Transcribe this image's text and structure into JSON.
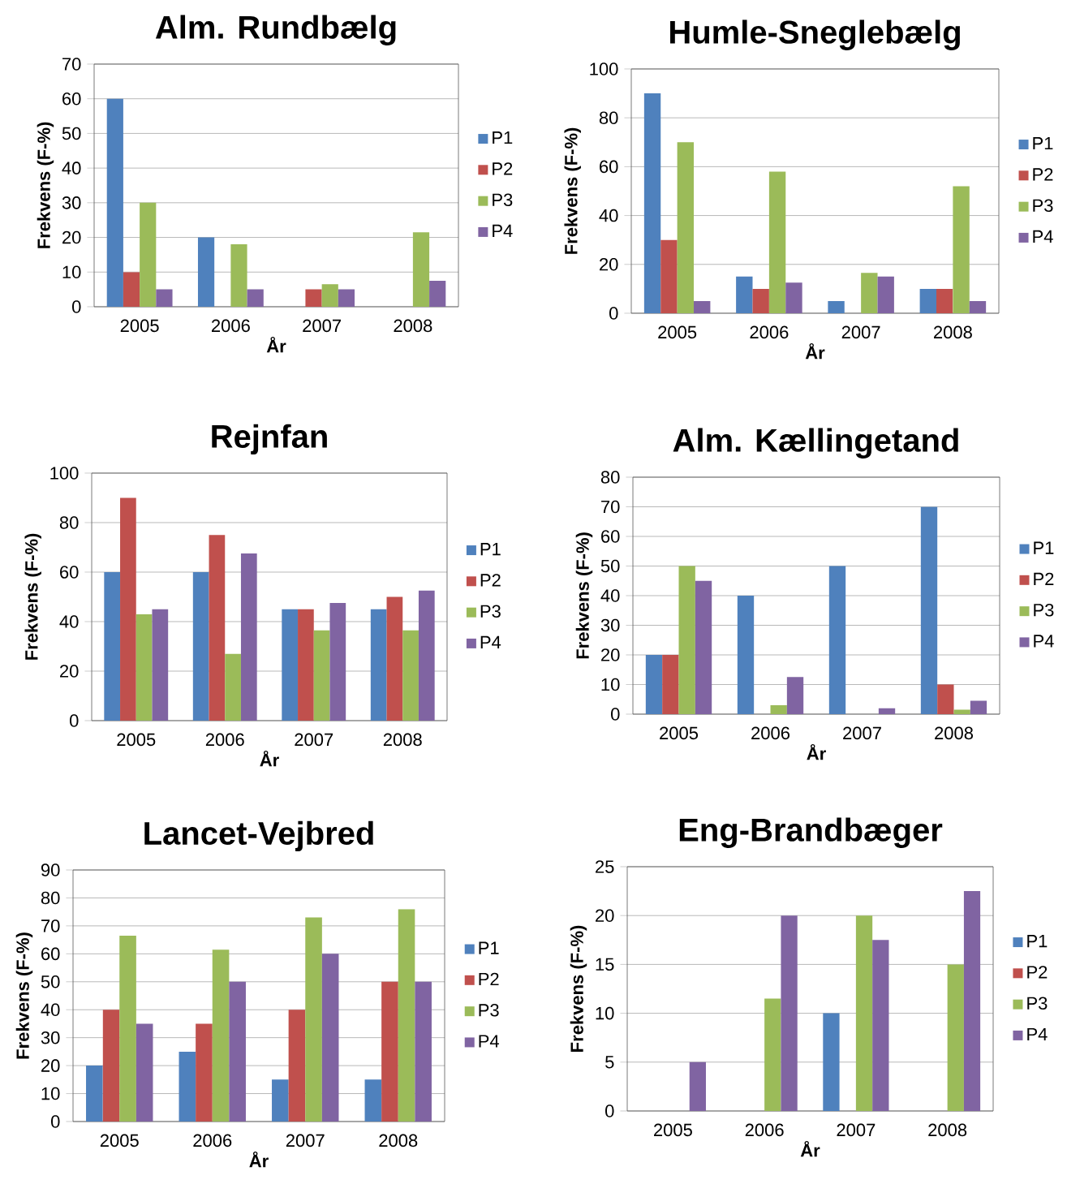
{
  "chart_data": [
    {
      "type": "bar",
      "title": "Alm. Rundbælg",
      "xlabel": "År",
      "ylabel": "Frekvens (F-%)",
      "categories": [
        "2005",
        "2006",
        "2007",
        "2008"
      ],
      "ylim": [
        0,
        70
      ],
      "yticks": [
        0,
        10,
        20,
        30,
        40,
        50,
        60,
        70
      ],
      "grid": "y",
      "legend": "right",
      "series": [
        {
          "name": "P1",
          "color": "#4f81bd",
          "values": [
            60,
            20,
            0,
            0
          ]
        },
        {
          "name": "P2",
          "color": "#c0504d",
          "values": [
            10,
            0,
            5,
            0
          ]
        },
        {
          "name": "P3",
          "color": "#9bbb59",
          "values": [
            30,
            18,
            6.5,
            21.5
          ]
        },
        {
          "name": "P4",
          "color": "#8064a2",
          "values": [
            5,
            5,
            5,
            7.5
          ]
        }
      ]
    },
    {
      "type": "bar",
      "title": "Humle-Sneglebælg",
      "xlabel": "År",
      "ylabel": "Frekvens (F-%)",
      "categories": [
        "2005",
        "2006",
        "2007",
        "2008"
      ],
      "ylim": [
        0,
        100
      ],
      "yticks": [
        0,
        20,
        40,
        60,
        80,
        100
      ],
      "grid": "y",
      "legend": "right",
      "series": [
        {
          "name": "P1",
          "color": "#4f81bd",
          "values": [
            90,
            15,
            5,
            10
          ]
        },
        {
          "name": "P2",
          "color": "#c0504d",
          "values": [
            30,
            10,
            0,
            10
          ]
        },
        {
          "name": "P3",
          "color": "#9bbb59",
          "values": [
            70,
            58,
            16.5,
            52
          ]
        },
        {
          "name": "P4",
          "color": "#8064a2",
          "values": [
            5,
            12.5,
            15,
            5
          ]
        }
      ]
    },
    {
      "type": "bar",
      "title": "Rejnfan",
      "xlabel": "År",
      "ylabel": "Frekvens (F-%)",
      "categories": [
        "2005",
        "2006",
        "2007",
        "2008"
      ],
      "ylim": [
        0,
        100
      ],
      "yticks": [
        0,
        20,
        40,
        60,
        80,
        100
      ],
      "grid": "y",
      "legend": "right",
      "series": [
        {
          "name": "P1",
          "color": "#4f81bd",
          "values": [
            60,
            60,
            45,
            45
          ]
        },
        {
          "name": "P2",
          "color": "#c0504d",
          "values": [
            90,
            75,
            45,
            50
          ]
        },
        {
          "name": "P3",
          "color": "#9bbb59",
          "values": [
            43,
            27,
            36.5,
            36.5
          ]
        },
        {
          "name": "P4",
          "color": "#8064a2",
          "values": [
            45,
            67.5,
            47.5,
            52.5
          ]
        }
      ]
    },
    {
      "type": "bar",
      "title": "Alm. Kællingetand",
      "xlabel": "År",
      "ylabel": "Frekvens (F-%)",
      "categories": [
        "2005",
        "2006",
        "2007",
        "2008"
      ],
      "ylim": [
        0,
        80
      ],
      "yticks": [
        0,
        10,
        20,
        30,
        40,
        50,
        60,
        70,
        80
      ],
      "grid": "y",
      "legend": "right",
      "series": [
        {
          "name": "P1",
          "color": "#4f81bd",
          "values": [
            20,
            40,
            50,
            70
          ]
        },
        {
          "name": "P2",
          "color": "#c0504d",
          "values": [
            20,
            0,
            0,
            10
          ]
        },
        {
          "name": "P3",
          "color": "#9bbb59",
          "values": [
            50,
            3,
            0,
            1.5
          ]
        },
        {
          "name": "P4",
          "color": "#8064a2",
          "values": [
            45,
            12.5,
            2,
            4.5
          ]
        }
      ]
    },
    {
      "type": "bar",
      "title": "Lancet-Vejbred",
      "xlabel": "År",
      "ylabel": "Frekvens (F-%)",
      "categories": [
        "2005",
        "2006",
        "2007",
        "2008"
      ],
      "ylim": [
        0,
        90
      ],
      "yticks": [
        0,
        10,
        20,
        30,
        40,
        50,
        60,
        70,
        80,
        90
      ],
      "grid": "y",
      "legend": "right",
      "series": [
        {
          "name": "P1",
          "color": "#4f81bd",
          "values": [
            20,
            25,
            15,
            15
          ]
        },
        {
          "name": "P2",
          "color": "#c0504d",
          "values": [
            40,
            35,
            40,
            50
          ]
        },
        {
          "name": "P3",
          "color": "#9bbb59",
          "values": [
            66.5,
            61.5,
            73,
            76
          ]
        },
        {
          "name": "P4",
          "color": "#8064a2",
          "values": [
            35,
            50,
            60,
            50
          ]
        }
      ]
    },
    {
      "type": "bar",
      "title": "Eng-Brandbæger",
      "xlabel": "År",
      "ylabel": "Frekvens (F-%)",
      "categories": [
        "2005",
        "2006",
        "2007",
        "2008"
      ],
      "ylim": [
        0,
        25
      ],
      "yticks": [
        0,
        5,
        10,
        15,
        20,
        25
      ],
      "grid": "y",
      "legend": "right",
      "series": [
        {
          "name": "P1",
          "color": "#4f81bd",
          "values": [
            0,
            0,
            10,
            0
          ]
        },
        {
          "name": "P2",
          "color": "#c0504d",
          "values": [
            0,
            0,
            0,
            0
          ]
        },
        {
          "name": "P3",
          "color": "#9bbb59",
          "values": [
            0,
            11.5,
            20,
            15
          ]
        },
        {
          "name": "P4",
          "color": "#8064a2",
          "values": [
            5,
            20,
            17.5,
            22.5
          ]
        }
      ]
    }
  ]
}
